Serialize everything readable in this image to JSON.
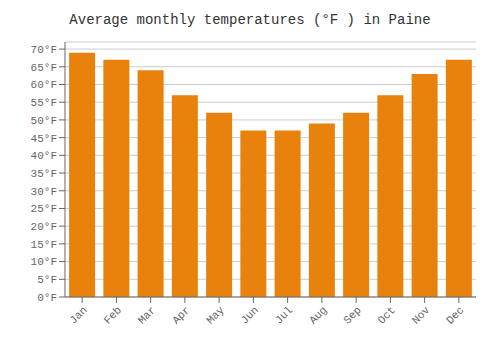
{
  "chart_data": {
    "type": "bar",
    "title": "Average monthly temperatures (°F ) in Paine",
    "categories": [
      "Jan",
      "Feb",
      "Mar",
      "Apr",
      "May",
      "Jun",
      "Jul",
      "Aug",
      "Sep",
      "Oct",
      "Nov",
      "Dec"
    ],
    "values": [
      69,
      67,
      64,
      57,
      52,
      47,
      47,
      49,
      52,
      57,
      63,
      67
    ],
    "color": "#E8820C",
    "ylim": [
      0,
      72
    ],
    "yticks": [
      {
        "value": 0,
        "label": "0°F"
      },
      {
        "value": 5,
        "label": "5°F"
      },
      {
        "value": 10,
        "label": "10°F"
      },
      {
        "value": 15,
        "label": "15°F"
      },
      {
        "value": 20,
        "label": "20°F"
      },
      {
        "value": 25,
        "label": "25°F"
      },
      {
        "value": 30,
        "label": "30°F"
      },
      {
        "value": 35,
        "label": "35°F"
      },
      {
        "value": 40,
        "label": "40°F"
      },
      {
        "value": 45,
        "label": "45°F"
      },
      {
        "value": 50,
        "label": "50°F"
      },
      {
        "value": 55,
        "label": "55°F"
      },
      {
        "value": 60,
        "label": "60°F"
      },
      {
        "value": 65,
        "label": "65°F"
      },
      {
        "value": 70,
        "label": "70°F"
      }
    ],
    "grid": true
  }
}
